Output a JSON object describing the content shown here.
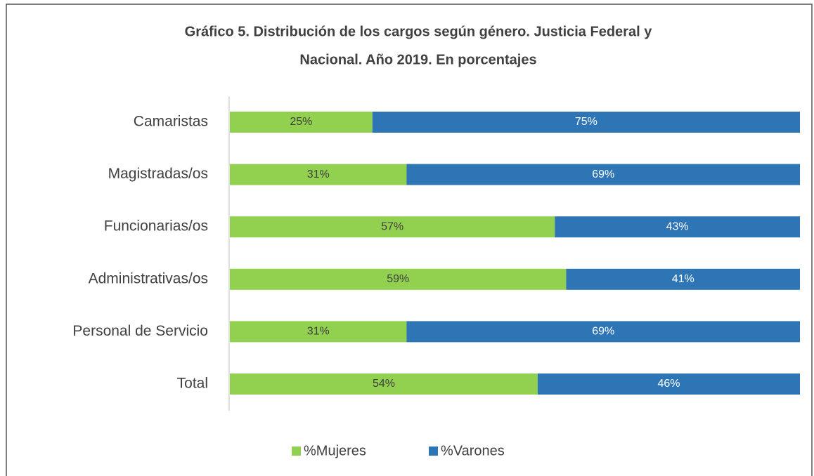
{
  "chart_data": {
    "type": "stacked-bar-horizontal",
    "title": [
      "Gráfico 5.  Distribución de los cargos según género. Justicia Federal y",
      "Nacional. Año 2019.  En porcentajes"
    ],
    "categories": [
      "Camaristas",
      "Magistradas/os",
      "Funcionarias/os",
      "Administrativas/os",
      "Personal de Servicio",
      "Total"
    ],
    "series": [
      {
        "name": "%Mujeres",
        "color": "#92d050",
        "values": [
          25,
          31,
          57,
          59,
          31,
          54
        ],
        "value_labels": [
          "25%",
          "31%",
          "57%",
          "59%",
          "31%",
          "54%"
        ]
      },
      {
        "name": "%Varones",
        "color": "#2e75b6",
        "values": [
          75,
          69,
          43,
          41,
          69,
          46
        ],
        "value_labels": [
          "75%",
          "69%",
          "43%",
          "41%",
          "69%",
          "46%"
        ]
      }
    ],
    "legend": "bottom"
  }
}
